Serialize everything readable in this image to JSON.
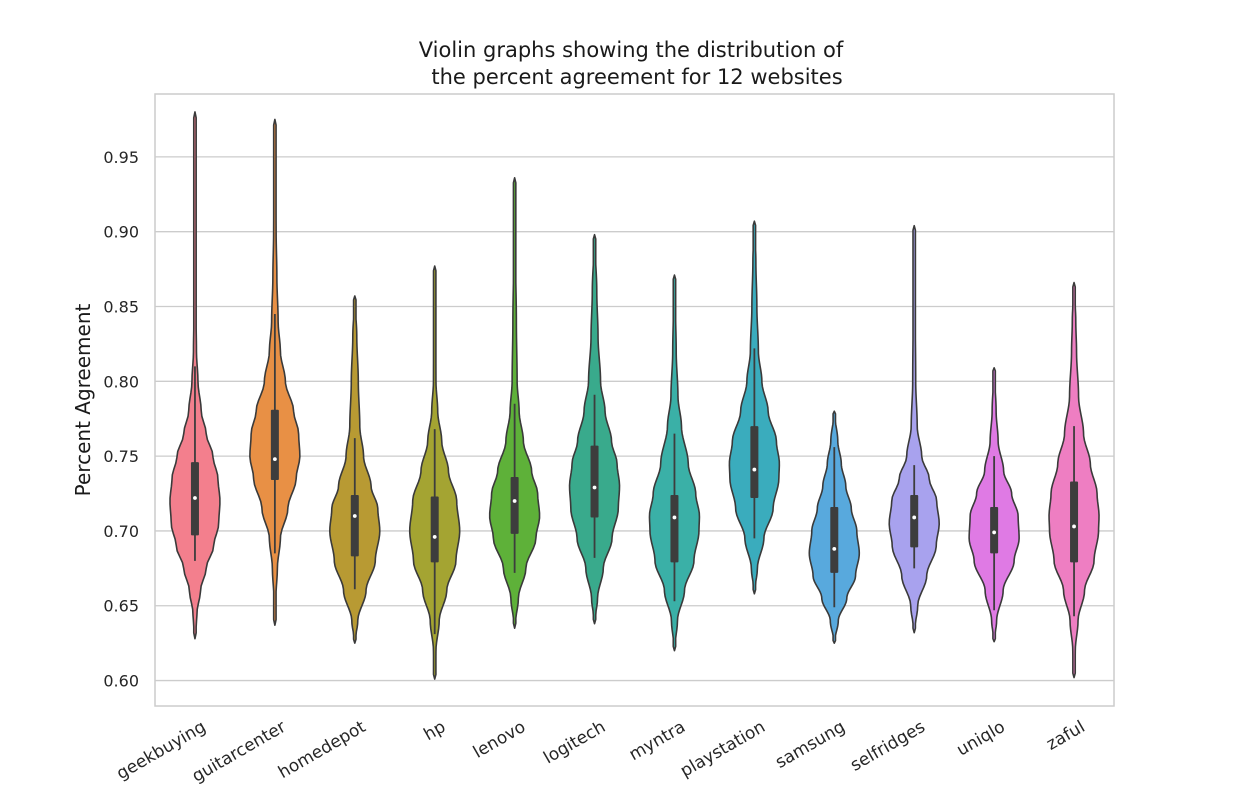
{
  "chart_data": {
    "type": "violin",
    "title": "Violin graphs showing the distribution of\nthe percent agreement for 12 websites",
    "title_lines": [
      "Violin graphs showing the distribution of",
      "the percent agreement for 12 websites"
    ],
    "xlabel": "",
    "ylabel": "Percent Agreement",
    "ylim": [
      0.583,
      0.992
    ],
    "yticks": [
      0.6,
      0.65,
      0.7,
      0.75,
      0.8,
      0.85,
      0.9,
      0.95
    ],
    "ytick_labels": [
      "0.60",
      "0.65",
      "0.70",
      "0.75",
      "0.80",
      "0.85",
      "0.90",
      "0.95"
    ],
    "grid": true,
    "categories": [
      "geekbuying",
      "guitarcenter",
      "homedepot",
      "hp",
      "lenovo",
      "logitech",
      "myntra",
      "playstation",
      "samsung",
      "selfridges",
      "uniqlo",
      "zaful"
    ],
    "series": [
      {
        "name": "geekbuying",
        "color": "#f37f8d",
        "min": 0.628,
        "max": 0.98,
        "q1": 0.697,
        "median": 0.722,
        "q3": 0.746,
        "whisker_low": 0.68,
        "whisker_high": 0.81,
        "profile": [
          [
            0.628,
            0.0
          ],
          [
            0.645,
            0.08
          ],
          [
            0.66,
            0.22
          ],
          [
            0.675,
            0.45
          ],
          [
            0.69,
            0.75
          ],
          [
            0.705,
            0.95
          ],
          [
            0.72,
            1.0
          ],
          [
            0.735,
            0.92
          ],
          [
            0.75,
            0.72
          ],
          [
            0.765,
            0.45
          ],
          [
            0.78,
            0.25
          ],
          [
            0.8,
            0.12
          ],
          [
            0.82,
            0.06
          ],
          [
            0.85,
            0.035
          ],
          [
            0.9,
            0.022
          ],
          [
            0.95,
            0.014
          ],
          [
            0.98,
            0.0
          ]
        ]
      },
      {
        "name": "guitarcenter",
        "color": "#e89045",
        "min": 0.637,
        "max": 0.975,
        "q1": 0.734,
        "median": 0.748,
        "q3": 0.781,
        "whisker_low": 0.685,
        "whisker_high": 0.845,
        "profile": [
          [
            0.637,
            0.0
          ],
          [
            0.655,
            0.04
          ],
          [
            0.675,
            0.1
          ],
          [
            0.695,
            0.22
          ],
          [
            0.715,
            0.52
          ],
          [
            0.735,
            0.85
          ],
          [
            0.75,
            1.0
          ],
          [
            0.765,
            0.95
          ],
          [
            0.78,
            0.75
          ],
          [
            0.8,
            0.42
          ],
          [
            0.82,
            0.22
          ],
          [
            0.84,
            0.13
          ],
          [
            0.87,
            0.08
          ],
          [
            0.9,
            0.05
          ],
          [
            0.94,
            0.03
          ],
          [
            0.975,
            0.0
          ]
        ]
      },
      {
        "name": "homedepot",
        "color": "#b89a33",
        "min": 0.625,
        "max": 0.857,
        "q1": 0.683,
        "median": 0.71,
        "q3": 0.724,
        "whisker_low": 0.661,
        "whisker_high": 0.762,
        "profile": [
          [
            0.625,
            0.0
          ],
          [
            0.64,
            0.12
          ],
          [
            0.66,
            0.45
          ],
          [
            0.68,
            0.82
          ],
          [
            0.7,
            1.0
          ],
          [
            0.715,
            0.92
          ],
          [
            0.73,
            0.65
          ],
          [
            0.75,
            0.35
          ],
          [
            0.77,
            0.2
          ],
          [
            0.8,
            0.14
          ],
          [
            0.83,
            0.08
          ],
          [
            0.857,
            0.0
          ]
        ]
      },
      {
        "name": "hp",
        "color": "#a4a432",
        "min": 0.601,
        "max": 0.877,
        "q1": 0.679,
        "median": 0.696,
        "q3": 0.723,
        "whisker_low": 0.631,
        "whisker_high": 0.768,
        "profile": [
          [
            0.601,
            0.0
          ],
          [
            0.62,
            0.05
          ],
          [
            0.64,
            0.18
          ],
          [
            0.66,
            0.48
          ],
          [
            0.68,
            0.85
          ],
          [
            0.7,
            1.0
          ],
          [
            0.72,
            0.88
          ],
          [
            0.74,
            0.55
          ],
          [
            0.76,
            0.28
          ],
          [
            0.78,
            0.12
          ],
          [
            0.8,
            0.05
          ],
          [
            0.84,
            0.04
          ],
          [
            0.877,
            0.0
          ]
        ]
      },
      {
        "name": "lenovo",
        "color": "#5eb139",
        "min": 0.635,
        "max": 0.936,
        "q1": 0.698,
        "median": 0.72,
        "q3": 0.736,
        "whisker_low": 0.672,
        "whisker_high": 0.785,
        "profile": [
          [
            0.635,
            0.0
          ],
          [
            0.655,
            0.15
          ],
          [
            0.675,
            0.45
          ],
          [
            0.695,
            0.85
          ],
          [
            0.71,
            1.0
          ],
          [
            0.725,
            0.92
          ],
          [
            0.74,
            0.68
          ],
          [
            0.76,
            0.35
          ],
          [
            0.78,
            0.18
          ],
          [
            0.8,
            0.1
          ],
          [
            0.84,
            0.07
          ],
          [
            0.88,
            0.04
          ],
          [
            0.936,
            0.0
          ]
        ]
      },
      {
        "name": "logitech",
        "color": "#39aa8c",
        "min": 0.638,
        "max": 0.898,
        "q1": 0.709,
        "median": 0.729,
        "q3": 0.757,
        "whisker_low": 0.682,
        "whisker_high": 0.791,
        "profile": [
          [
            0.638,
            0.0
          ],
          [
            0.655,
            0.12
          ],
          [
            0.675,
            0.35
          ],
          [
            0.695,
            0.7
          ],
          [
            0.715,
            0.95
          ],
          [
            0.73,
            1.0
          ],
          [
            0.745,
            0.9
          ],
          [
            0.76,
            0.68
          ],
          [
            0.78,
            0.42
          ],
          [
            0.8,
            0.24
          ],
          [
            0.83,
            0.14
          ],
          [
            0.86,
            0.09
          ],
          [
            0.898,
            0.0
          ]
        ]
      },
      {
        "name": "myntra",
        "color": "#3ab0a7",
        "min": 0.62,
        "max": 0.871,
        "q1": 0.679,
        "median": 0.709,
        "q3": 0.724,
        "whisker_low": 0.653,
        "whisker_high": 0.765,
        "profile": [
          [
            0.62,
            0.0
          ],
          [
            0.64,
            0.12
          ],
          [
            0.66,
            0.4
          ],
          [
            0.68,
            0.78
          ],
          [
            0.7,
            0.98
          ],
          [
            0.71,
            1.0
          ],
          [
            0.725,
            0.85
          ],
          [
            0.745,
            0.55
          ],
          [
            0.77,
            0.28
          ],
          [
            0.79,
            0.14
          ],
          [
            0.82,
            0.07
          ],
          [
            0.85,
            0.04
          ],
          [
            0.871,
            0.0
          ]
        ]
      },
      {
        "name": "playstation",
        "color": "#3aacbd",
        "min": 0.658,
        "max": 0.907,
        "q1": 0.722,
        "median": 0.741,
        "q3": 0.77,
        "whisker_low": 0.695,
        "whisker_high": 0.822,
        "profile": [
          [
            0.658,
            0.0
          ],
          [
            0.675,
            0.12
          ],
          [
            0.695,
            0.38
          ],
          [
            0.715,
            0.75
          ],
          [
            0.735,
            0.98
          ],
          [
            0.745,
            1.0
          ],
          [
            0.76,
            0.88
          ],
          [
            0.78,
            0.55
          ],
          [
            0.8,
            0.3
          ],
          [
            0.82,
            0.16
          ],
          [
            0.85,
            0.1
          ],
          [
            0.88,
            0.06
          ],
          [
            0.907,
            0.0
          ]
        ]
      },
      {
        "name": "samsung",
        "color": "#58a9dd",
        "min": 0.625,
        "max": 0.78,
        "q1": 0.672,
        "median": 0.688,
        "q3": 0.716,
        "whisker_low": 0.649,
        "whisker_high": 0.756,
        "profile": [
          [
            0.625,
            0.0
          ],
          [
            0.64,
            0.16
          ],
          [
            0.655,
            0.5
          ],
          [
            0.67,
            0.85
          ],
          [
            0.685,
            1.0
          ],
          [
            0.7,
            0.9
          ],
          [
            0.715,
            0.68
          ],
          [
            0.73,
            0.46
          ],
          [
            0.745,
            0.28
          ],
          [
            0.76,
            0.14
          ],
          [
            0.78,
            0.0
          ]
        ]
      },
      {
        "name": "selfridges",
        "color": "#a8a2ee",
        "min": 0.632,
        "max": 0.904,
        "q1": 0.689,
        "median": 0.709,
        "q3": 0.724,
        "whisker_low": 0.675,
        "whisker_high": 0.744,
        "profile": [
          [
            0.632,
            0.0
          ],
          [
            0.65,
            0.14
          ],
          [
            0.67,
            0.5
          ],
          [
            0.69,
            0.88
          ],
          [
            0.705,
            1.0
          ],
          [
            0.72,
            0.9
          ],
          [
            0.735,
            0.6
          ],
          [
            0.75,
            0.3
          ],
          [
            0.77,
            0.12
          ],
          [
            0.8,
            0.06
          ],
          [
            0.85,
            0.04
          ],
          [
            0.904,
            0.0
          ]
        ]
      },
      {
        "name": "uniqlo",
        "color": "#df7ae4",
        "min": 0.626,
        "max": 0.809,
        "q1": 0.685,
        "median": 0.699,
        "q3": 0.716,
        "whisker_low": 0.647,
        "whisker_high": 0.75,
        "profile": [
          [
            0.626,
            0.0
          ],
          [
            0.64,
            0.1
          ],
          [
            0.66,
            0.36
          ],
          [
            0.68,
            0.8
          ],
          [
            0.695,
            1.0
          ],
          [
            0.71,
            0.96
          ],
          [
            0.725,
            0.7
          ],
          [
            0.74,
            0.38
          ],
          [
            0.76,
            0.16
          ],
          [
            0.78,
            0.08
          ],
          [
            0.809,
            0.0
          ]
        ]
      },
      {
        "name": "zaful",
        "color": "#ee7ec2",
        "min": 0.602,
        "max": 0.866,
        "q1": 0.679,
        "median": 0.703,
        "q3": 0.733,
        "whisker_low": 0.643,
        "whisker_high": 0.77,
        "profile": [
          [
            0.602,
            0.0
          ],
          [
            0.62,
            0.05
          ],
          [
            0.64,
            0.16
          ],
          [
            0.66,
            0.42
          ],
          [
            0.68,
            0.8
          ],
          [
            0.7,
            0.98
          ],
          [
            0.71,
            1.0
          ],
          [
            0.725,
            0.92
          ],
          [
            0.745,
            0.65
          ],
          [
            0.765,
            0.38
          ],
          [
            0.79,
            0.18
          ],
          [
            0.82,
            0.1
          ],
          [
            0.84,
            0.07
          ],
          [
            0.866,
            0.0
          ]
        ]
      }
    ]
  }
}
